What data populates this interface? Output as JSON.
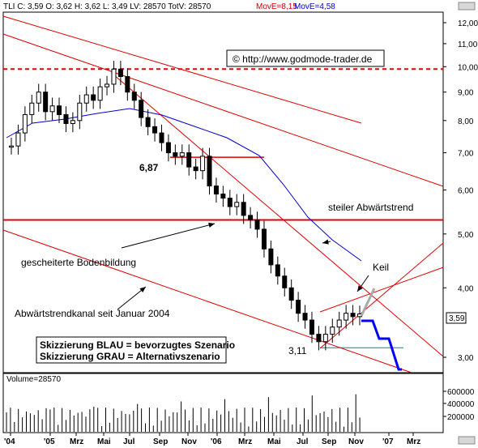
{
  "header": {
    "info": "TLI C: 3,59  O: 3,62  H: 3,62  L: 3,49  LV: 28570  TotV: 28570",
    "move_red": "MovE=8,15",
    "move_blue": "MovE=4,58"
  },
  "copyright": "© http://www.godmode-trader.de",
  "annotations": {
    "price_label_low": "6,87",
    "price_label_bottom": "3,11",
    "last_price": "3,59",
    "steep_trend": "steiler Abwärtstrend",
    "failed_bottom": "gescheiterte Bodenbildung",
    "channel": "Abwärtstrendkanal seit Januar 2004",
    "wedge": "Keil",
    "legend_blue": "Skizzierung BLAU = bevorzugtes Szenario",
    "legend_grey": "Skizzierung GRAU = Alternativszenario"
  },
  "volume_label": "Volume=28570",
  "colors": {
    "candle": "#000000",
    "trend": "#e00000",
    "ma_red": "#cc0000",
    "ma_blue": "#0000cc",
    "scenario_blue": "#0000ff",
    "scenario_grey": "#aaaaaa",
    "move_red_text": "#cc0000",
    "move_blue_text": "#0000cc"
  },
  "chart_data": {
    "type": "candlestick",
    "y_scale": "log",
    "ylim": [
      2.75,
      13.0
    ],
    "yticks": [
      "12,00",
      "11,00",
      "10,00",
      "9,00",
      "8,00",
      "7,00",
      "6,00",
      "5,00",
      "4,00",
      "3,00"
    ],
    "xticks": [
      "'04",
      "'05",
      "Mrz",
      "Mai",
      "Jul",
      "Sep",
      "Nov",
      "'06",
      "Mrz",
      "Mai",
      "Jul",
      "Sep",
      "Nov",
      "'07",
      "Mrz"
    ],
    "volume_ticks": [
      "600000",
      "400000",
      "200000"
    ],
    "levels": {
      "top_dashed": 9.9,
      "support": 5.3,
      "level_687": 6.87,
      "level_311": 3.11
    },
    "closes_approx": [
      7.2,
      7.6,
      8.2,
      8.6,
      9.0,
      8.3,
      8.5,
      8.2,
      7.9,
      8.0,
      8.6,
      8.9,
      8.7,
      9.2,
      9.3,
      9.9,
      9.6,
      9.0,
      8.7,
      8.1,
      7.8,
      7.6,
      7.3,
      7.0,
      6.9,
      7.0,
      6.6,
      6.5,
      6.9,
      6.1,
      5.9,
      5.8,
      5.6,
      5.7,
      5.4,
      5.3,
      5.1,
      4.7,
      4.4,
      4.2,
      4.0,
      3.8,
      3.6,
      3.5,
      3.3,
      3.2,
      3.3,
      3.4,
      3.5,
      3.6,
      3.55,
      3.59
    ]
  }
}
